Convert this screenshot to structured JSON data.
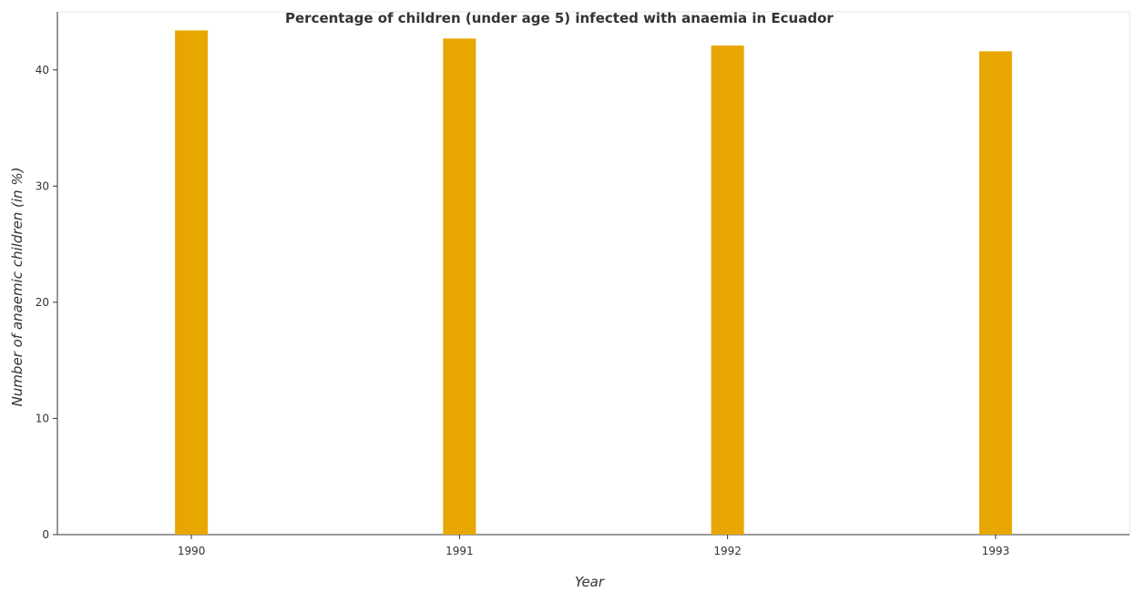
{
  "chart_data": {
    "type": "bar",
    "title": "Percentage of children (under age 5) infected with anaemia in Ecuador",
    "xlabel": "Year",
    "ylabel": "Number of anaemic children (in %)",
    "categories": [
      "1990",
      "1991",
      "1992",
      "1993"
    ],
    "values": [
      43.4,
      42.7,
      42.1,
      41.6
    ],
    "ylim": [
      0,
      45
    ],
    "yticks": [
      0,
      10,
      20,
      30,
      40
    ],
    "grid": false,
    "bar_color": "#e8a600"
  }
}
